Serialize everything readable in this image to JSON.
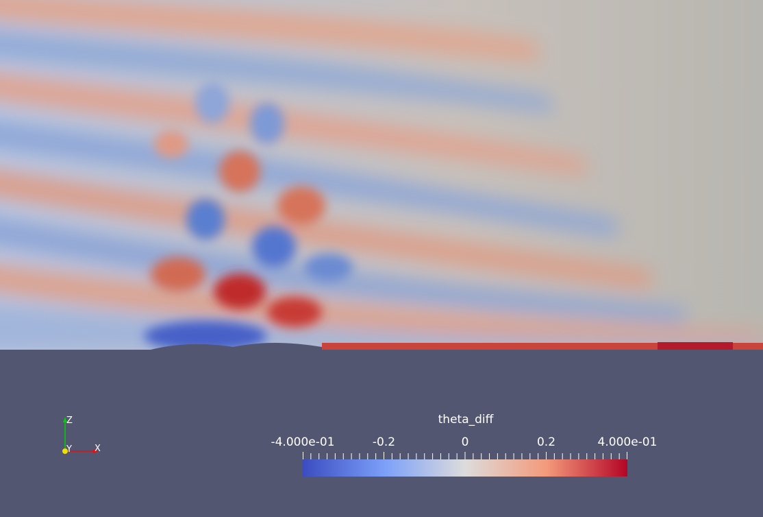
{
  "legend": {
    "title": "theta_diff",
    "ticks": [
      {
        "label": "-4.000e-01",
        "value": -0.4
      },
      {
        "label": "-0.2",
        "value": -0.2
      },
      {
        "label": "0",
        "value": 0
      },
      {
        "label": "0.2",
        "value": 0.2
      },
      {
        "label": "4.000e-01",
        "value": 0.4
      }
    ],
    "range": [
      -0.4,
      0.4
    ],
    "colors": {
      "low": "#3b4cc0",
      "mid": "#dddcdc",
      "high": "#b40426"
    }
  },
  "axes": {
    "z_label": "Z",
    "y_label": "Y",
    "x_label": "X"
  },
  "background_color": "#525670"
}
